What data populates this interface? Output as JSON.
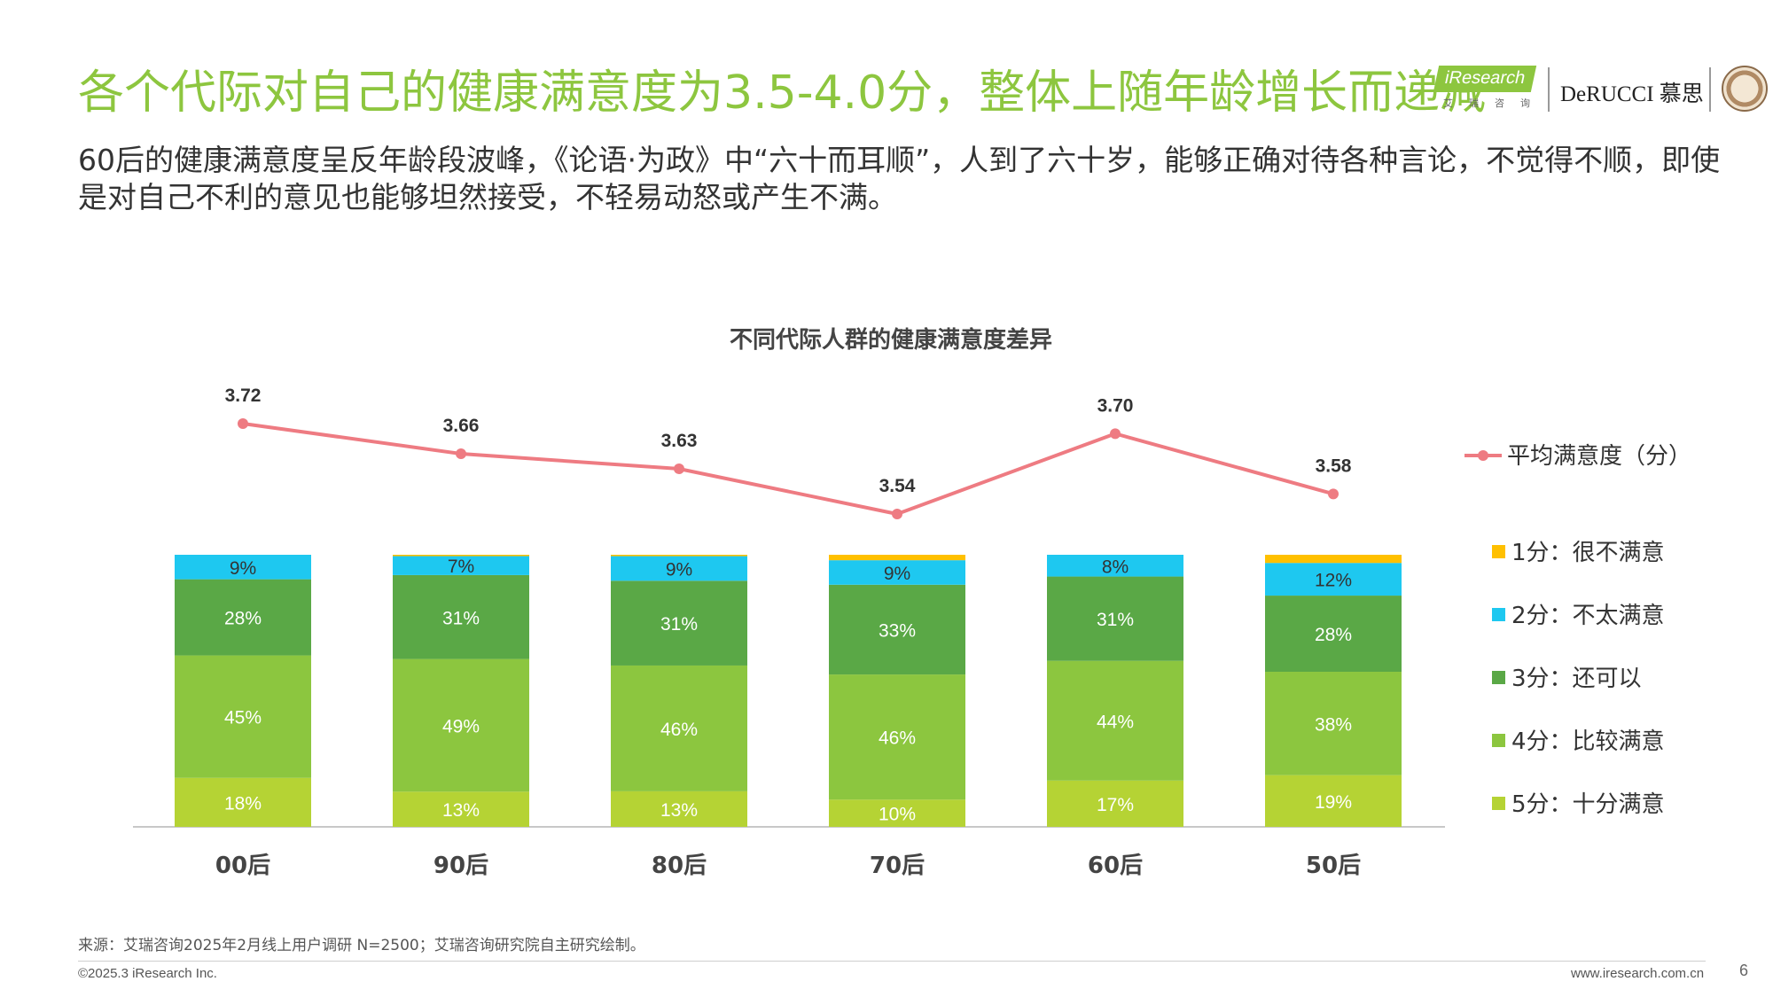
{
  "header": {
    "title": "各个代际对自己的健康满意度为3.5-4.0分，整体上随年龄增长而递减",
    "subtitle": "60后的健康满意度呈反年龄段波峰，《论语·为政》中“六十而耳顺”，人到了六十岁，能够正确对待各种言论，不觉得不顺，即使是对自己不利的意见也能够坦然接受，不轻易动怒或产生不满。",
    "logo_iresearch": "iResearch",
    "logo_iresearch_sub": "艾瑞咨询",
    "logo_derucci": "DeRUCCI 慕思"
  },
  "chart_data": {
    "type": "bar",
    "stacked": true,
    "title": "不同代际人群的健康满意度差异",
    "categories": [
      "00后",
      "90后",
      "80后",
      "70后",
      "60后",
      "50后"
    ],
    "series": [
      {
        "name": "5分：十分满意",
        "values": [
          18,
          13,
          13,
          10,
          17,
          19
        ],
        "labels": [
          "18%",
          "13%",
          "13%",
          "10%",
          "17%",
          "19%"
        ]
      },
      {
        "name": "4分：比较满意",
        "values": [
          45,
          49,
          46,
          46,
          44,
          38
        ],
        "labels": [
          "45%",
          "49%",
          "46%",
          "46%",
          "44%",
          "38%"
        ]
      },
      {
        "name": "3分：还可以",
        "values": [
          28,
          31,
          31,
          33,
          31,
          28
        ],
        "labels": [
          "28%",
          "31%",
          "31%",
          "33%",
          "31%",
          "28%"
        ]
      },
      {
        "name": "2分：不太满意",
        "values": [
          9,
          7,
          9,
          9,
          8,
          12
        ],
        "labels": [
          "9%",
          "7%",
          "9%",
          "9%",
          "8%",
          "12%"
        ]
      },
      {
        "name": "1分：很不满意",
        "values": [
          0,
          0.5,
          0.5,
          2,
          0,
          3
        ],
        "labels": [
          "",
          "",
          "",
          "",
          "",
          ""
        ]
      }
    ],
    "line_series": {
      "name": "平均满意度（分）",
      "values": [
        3.72,
        3.66,
        3.63,
        3.54,
        3.7,
        3.58
      ],
      "labels": [
        "3.72",
        "3.66",
        "3.63",
        "3.54",
        "3.70",
        "3.58"
      ]
    },
    "ylim": [
      0,
      100
    ],
    "legend_position": "right",
    "colors": {
      "s5": "#b5d334",
      "s4": "#8cc63f",
      "s3": "#5aa846",
      "s2": "#1ec8f0",
      "s1": "#ffc000",
      "line": "#ee7b82"
    }
  },
  "footer": {
    "source": "来源：艾瑞咨询2025年2月线上用户调研 N=2500；艾瑞咨询研究院自主研究绘制。",
    "copyright": "©2025.3 iResearch Inc.",
    "url": "www.iresearch.com.cn",
    "page": "6"
  }
}
